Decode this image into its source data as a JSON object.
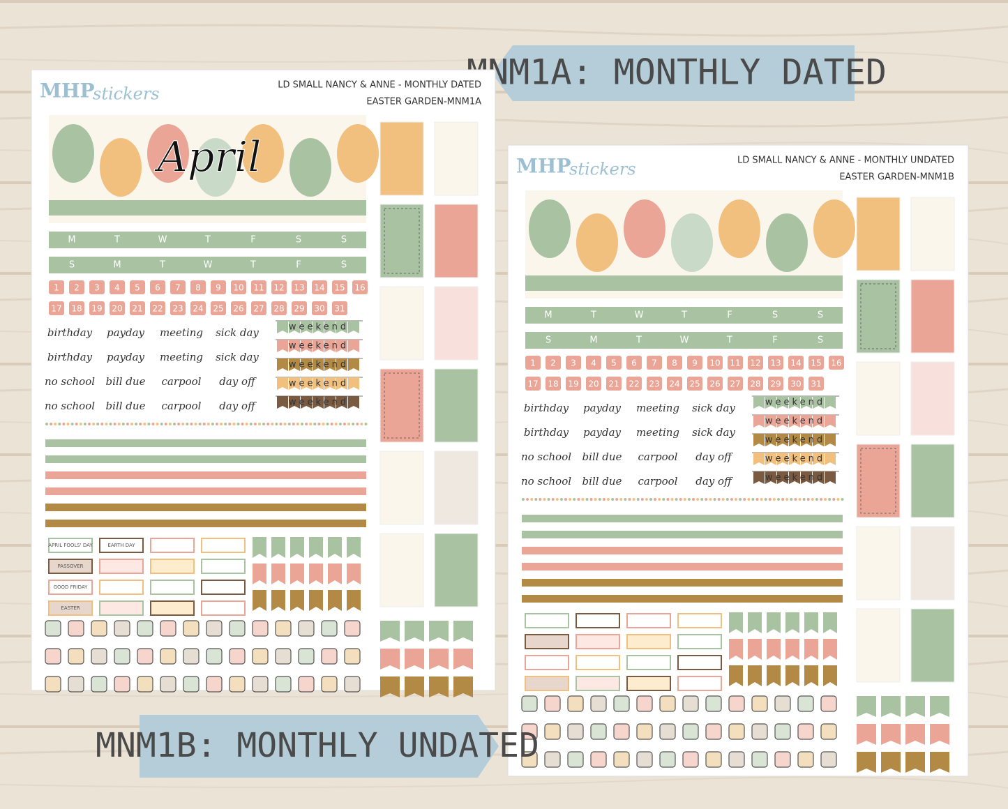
{
  "banners": {
    "dated": "MNM1A: MONTHLY DATED",
    "undated": "MNM1B: MONTHLY UNDATED"
  },
  "sheets": [
    {
      "brand": "MHP",
      "brand_script": "stickers",
      "title": "LD SMALL NANCY & ANNE - MONTHLY DATED",
      "subtitle": "EASTER GARDEN-MNM1A",
      "month": "April",
      "weekdays_top": [
        "M",
        "T",
        "W",
        "T",
        "F",
        "S",
        "S"
      ],
      "weekdays_bottom": [
        "S",
        "M",
        "T",
        "W",
        "T",
        "F",
        "S"
      ],
      "dates": [
        1,
        2,
        3,
        4,
        5,
        6,
        7,
        8,
        9,
        10,
        11,
        12,
        13,
        14,
        15,
        16,
        17,
        18,
        19,
        20,
        21,
        22,
        23,
        24,
        25,
        26,
        27,
        28,
        29,
        30,
        31
      ],
      "words": [
        [
          "birthday",
          "payday",
          "meeting",
          "sick day"
        ],
        [
          "birthday",
          "payday",
          "meeting",
          "sick day"
        ],
        [
          "no school",
          "bill due",
          "carpool",
          "day off"
        ],
        [
          "no school",
          "bill due",
          "carpool",
          "day off"
        ]
      ],
      "weekend": "weekend",
      "holidays": [
        "APRIL FOOLS' DAY",
        "EARTH DAY",
        "PASSOVER",
        "GOOD FRIDAY",
        "EASTER"
      ]
    },
    {
      "brand": "MHP",
      "brand_script": "stickers",
      "title": "LD SMALL NANCY & ANNE - MONTHLY UNDATED",
      "subtitle": "EASTER GARDEN-MNM1B",
      "weekdays_top": [
        "M",
        "T",
        "W",
        "T",
        "F",
        "S",
        "S"
      ],
      "weekdays_bottom": [
        "S",
        "M",
        "T",
        "W",
        "T",
        "F",
        "S"
      ],
      "dates": [
        1,
        2,
        3,
        4,
        5,
        6,
        7,
        8,
        9,
        10,
        11,
        12,
        13,
        14,
        15,
        16,
        17,
        18,
        19,
        20,
        21,
        22,
        23,
        24,
        25,
        26,
        27,
        28,
        29,
        30,
        31
      ],
      "words": [
        [
          "birthday",
          "payday",
          "meeting",
          "sick day"
        ],
        [
          "birthday",
          "payday",
          "meeting",
          "sick day"
        ],
        [
          "no school",
          "bill due",
          "carpool",
          "day off"
        ],
        [
          "no school",
          "bill due",
          "carpool",
          "day off"
        ]
      ],
      "weekend": "weekend"
    }
  ]
}
